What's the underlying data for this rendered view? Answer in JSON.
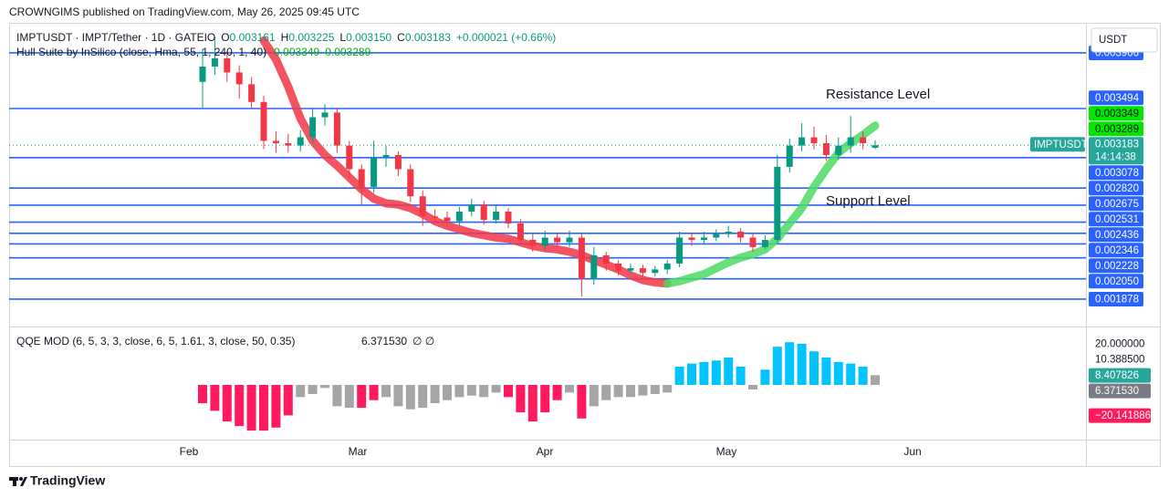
{
  "header": {
    "publisher": "CROWNGIMS published on TradingView.com, May 26, 2025 09:45 UTC"
  },
  "footer": {
    "brand": "TradingView"
  },
  "chart_data": [
    {
      "type": "candlestick",
      "title": "IMPTUSDT · IMPT/Tether · 1D · GATEIO",
      "ohlc_legend": [
        "O",
        "0.003161",
        "H",
        "0.003225",
        "L",
        "0.003150",
        "C",
        "0.003183",
        "+0.000021 (+0.66%)"
      ],
      "y_axis_title": "USDT",
      "ylim": [
        0.001669,
        0.004221
      ],
      "up_color": "#089981",
      "down_color": "#f23645",
      "open": [
        0.00372,
        0.00385,
        0.00392,
        0.0038,
        0.0037,
        0.00355,
        0.00322,
        0.0032,
        0.00318,
        0.00325,
        0.00342,
        0.00346,
        0.00318,
        0.00298,
        0.00283,
        0.00308,
        0.0031,
        0.00298,
        0.00275,
        0.00258,
        0.00257,
        0.00254,
        0.00262,
        0.00268,
        0.00255,
        0.00262,
        0.00252,
        0.00238,
        0.00233,
        0.0024,
        0.00236,
        0.0024,
        0.00205,
        0.00225,
        0.00218,
        0.00212,
        0.00214,
        0.0021,
        0.00213,
        0.00218,
        0.0024,
        0.00238,
        0.0024,
        0.00243,
        0.00245,
        0.0024,
        0.00232,
        0.00238,
        0.003,
        0.00318,
        0.00325,
        0.0032,
        0.0031,
        0.00318,
        0.00325,
        0.003161
      ],
      "high": [
        0.004,
        0.0041,
        0.00398,
        0.00386,
        0.00376,
        0.0036,
        0.0033,
        0.00328,
        0.00331,
        0.0035,
        0.00353,
        0.0035,
        0.00322,
        0.00302,
        0.00322,
        0.00318,
        0.00313,
        0.00302,
        0.0028,
        0.00264,
        0.00262,
        0.00266,
        0.00273,
        0.00271,
        0.00268,
        0.00265,
        0.00256,
        0.00243,
        0.00246,
        0.00244,
        0.00246,
        0.00243,
        0.00232,
        0.00228,
        0.00221,
        0.00218,
        0.00217,
        0.00216,
        0.00221,
        0.00245,
        0.00244,
        0.00245,
        0.00247,
        0.0025,
        0.00248,
        0.00243,
        0.00242,
        0.0031,
        0.00324,
        0.00337,
        0.00334,
        0.00327,
        0.00325,
        0.00343,
        0.0033,
        0.003225
      ],
      "low": [
        0.0035,
        0.00378,
        0.00372,
        0.00358,
        0.0035,
        0.00315,
        0.00312,
        0.00312,
        0.00313,
        0.0032,
        0.00335,
        0.00312,
        0.0029,
        0.00268,
        0.00278,
        0.003,
        0.00292,
        0.0027,
        0.0025,
        0.00252,
        0.00249,
        0.0025,
        0.00258,
        0.00251,
        0.00252,
        0.00248,
        0.00234,
        0.00228,
        0.00229,
        0.00232,
        0.00232,
        0.0019,
        0.002,
        0.00212,
        0.00208,
        0.00209,
        0.00206,
        0.00207,
        0.00209,
        0.00215,
        0.00233,
        0.00235,
        0.00237,
        0.0024,
        0.00236,
        0.00228,
        0.0023,
        0.00235,
        0.00295,
        0.00313,
        0.00315,
        0.00305,
        0.00306,
        0.00312,
        0.00315,
        0.00315
      ],
      "close": [
        0.00385,
        0.00392,
        0.0038,
        0.0037,
        0.00355,
        0.00322,
        0.0032,
        0.00318,
        0.00325,
        0.00342,
        0.00346,
        0.00318,
        0.00298,
        0.00283,
        0.00308,
        0.0031,
        0.00298,
        0.00275,
        0.00258,
        0.00257,
        0.00254,
        0.00262,
        0.00268,
        0.00255,
        0.00262,
        0.00252,
        0.00238,
        0.00233,
        0.0024,
        0.00236,
        0.0024,
        0.00205,
        0.00225,
        0.00218,
        0.00212,
        0.00214,
        0.0021,
        0.00213,
        0.00218,
        0.0024,
        0.00238,
        0.0024,
        0.00243,
        0.00245,
        0.0024,
        0.00232,
        0.00238,
        0.003,
        0.00318,
        0.00325,
        0.0032,
        0.0031,
        0.00318,
        0.00325,
        0.0032,
        0.003183
      ],
      "indicator": "Hull Suite by InSilico (close, Hma, 55, 1, 240, 1, 40)",
      "series": [
        {
          "color": "#f23645",
          "values": [
            null,
            null,
            null,
            null,
            null,
            0.00407,
            0.00391,
            0.00368,
            0.00341,
            0.00322,
            0.0031,
            0.00301,
            0.00291,
            0.00281,
            0.00273,
            0.00269,
            0.00268,
            0.00265,
            0.0026,
            0.00254,
            0.0025,
            0.00247,
            0.00244,
            0.00242,
            0.0024,
            0.00239,
            0.00236,
            0.00233,
            0.00231,
            0.0023,
            0.00228,
            0.00225,
            0.00221,
            0.00217,
            0.00213,
            0.00208,
            0.00204,
            0.00202,
            0.00201,
            null,
            null,
            null,
            null,
            null,
            null,
            null,
            null,
            null,
            null,
            null,
            null,
            null,
            null,
            null,
            null,
            null
          ]
        },
        {
          "color": "#4cd964",
          "values": [
            null,
            null,
            null,
            null,
            null,
            null,
            null,
            null,
            null,
            null,
            null,
            null,
            null,
            null,
            null,
            null,
            null,
            null,
            null,
            null,
            null,
            null,
            null,
            null,
            null,
            null,
            null,
            null,
            null,
            null,
            null,
            null,
            null,
            null,
            null,
            null,
            null,
            null,
            0.00201,
            0.00203,
            0.00206,
            0.00209,
            0.00214,
            0.00219,
            0.00223,
            0.00226,
            0.0023,
            0.00239,
            0.00252,
            0.00265,
            0.00283,
            0.00298,
            0.00312,
            0.0032,
            0.00327,
            0.003349
          ]
        }
      ],
      "hull_markers": [
        {
          "value": 0.003349,
          "label": "0.003349"
        },
        {
          "value": 0.003289,
          "label": "0.003289"
        }
      ],
      "hull_marker_color": "#00e600",
      "levels": [
        {
          "value": 0.003966,
          "label": "0.003966"
        },
        {
          "value": 0.003494,
          "label": "0.003494"
        },
        {
          "value": 0.003078,
          "label": "0.003078"
        },
        {
          "value": 0.00282,
          "label": "0.002820"
        },
        {
          "value": 0.002675,
          "label": "0.002675"
        },
        {
          "value": 0.002531,
          "label": "0.002531"
        },
        {
          "value": 0.002436,
          "label": "0.002436"
        },
        {
          "value": 0.002346,
          "label": "0.002346"
        },
        {
          "value": 0.002228,
          "label": "0.002228"
        },
        {
          "value": 0.00205,
          "label": "0.002050"
        },
        {
          "value": 0.001878,
          "label": "0.001878"
        }
      ],
      "level_color": "#2962ff",
      "last_price": {
        "symbol": "IMPTUSDT",
        "label": "0.003183",
        "countdown": "14:14:38",
        "color": "#26a69a"
      },
      "annotations": [
        {
          "text": "Resistance Level",
          "color": "#f23645"
        },
        {
          "text": "Support Level",
          "color": "#f23645"
        }
      ],
      "months": [
        "Feb",
        "Mar",
        "Apr",
        "May",
        "Jun"
      ]
    },
    {
      "type": "bar",
      "title": "QQE MOD (6, 5, 3, 3, close, 6, 5, 1.61, 3, close, 50, 0.35)",
      "legend_value": "6.371530",
      "legend_extra": "∅  ∅",
      "ylim": [
        -35.9,
        35.9
      ],
      "yticks": [
        {
          "value": 20,
          "label": "20.000000"
        },
        {
          "value": 10.3885,
          "label": "10.388500"
        }
      ],
      "markers": [
        {
          "value": 8.407826,
          "label": "8.407826",
          "color": "#26a69a"
        },
        {
          "value": 6.37153,
          "label": "6.371530",
          "color": "#787b86"
        },
        {
          "value": -20.141886,
          "label": "−20.141886",
          "color": "#ff1a5e"
        }
      ],
      "values": [
        -12,
        -17,
        -24,
        -27,
        -30,
        -30,
        -28,
        -20,
        -8,
        -6,
        -2,
        -14,
        -15,
        -15,
        -10,
        -8,
        -14,
        -16,
        -15,
        -12,
        -10,
        -8,
        -7,
        -8,
        -5,
        -8,
        -18,
        -24,
        -18,
        -10,
        -5,
        -22,
        -14,
        -10,
        -8,
        -8,
        -7,
        -6,
        -5,
        12,
        14,
        15,
        16,
        18,
        12,
        -3,
        10,
        25,
        28,
        27,
        22,
        18,
        15,
        14,
        12,
        6.37153
      ],
      "bar_colors": [
        "#ff1a5e",
        "#ff1a5e",
        "#ff1a5e",
        "#ff1a5e",
        "#ff1a5e",
        "#ff1a5e",
        "#ff1a5e",
        "#ff1a5e",
        "#a5a5a5",
        "#a5a5a5",
        "#a5a5a5",
        "#a5a5a5",
        "#a5a5a5",
        "#ff1a5e",
        "#ff1a5e",
        "#a5a5a5",
        "#a5a5a5",
        "#a5a5a5",
        "#a5a5a5",
        "#a5a5a5",
        "#a5a5a5",
        "#a5a5a5",
        "#a5a5a5",
        "#a5a5a5",
        "#a5a5a5",
        "#ff1a5e",
        "#ff1a5e",
        "#ff1a5e",
        "#ff1a5e",
        "#ff1a5e",
        "#a5a5a5",
        "#ff1a5e",
        "#a5a5a5",
        "#a5a5a5",
        "#a5a5a5",
        "#a5a5a5",
        "#a5a5a5",
        "#a5a5a5",
        "#a5a5a5",
        "#00c3ff",
        "#00c3ff",
        "#00c3ff",
        "#00c3ff",
        "#00c3ff",
        "#00c3ff",
        "#a5a5a5",
        "#00c3ff",
        "#00c3ff",
        "#00c3ff",
        "#00c3ff",
        "#00c3ff",
        "#00c3ff",
        "#00c3ff",
        "#00c3ff",
        "#00c3ff",
        "#a5a5a5"
      ]
    }
  ]
}
